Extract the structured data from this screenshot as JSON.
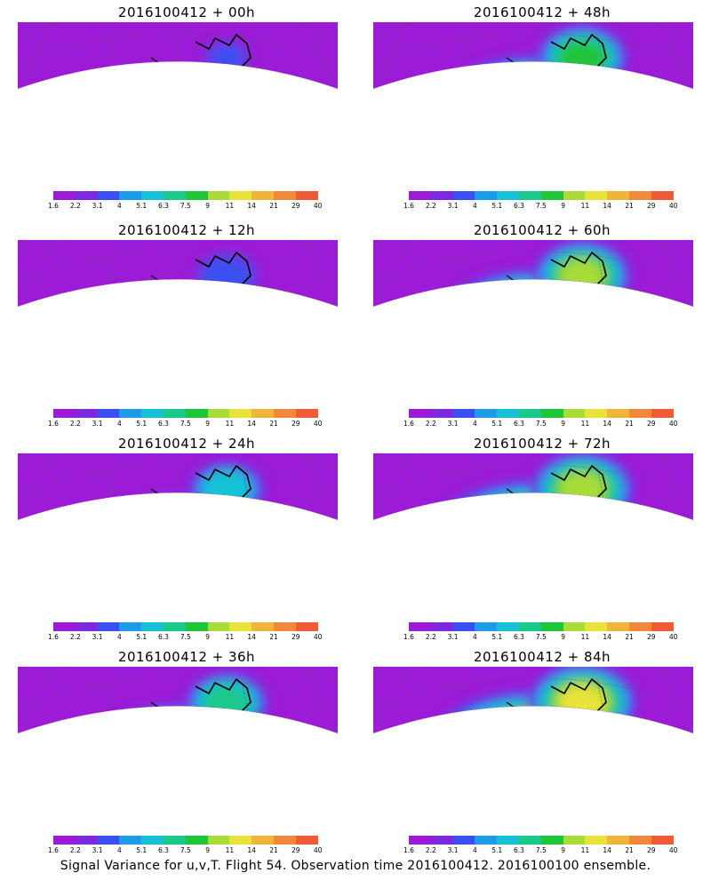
{
  "footer_text": "Signal Variance for u,v,T. Flight 54. Observation time 2016100412. 2016100100 ensemble.",
  "colorbar": {
    "colors": [
      "#9b1bd6",
      "#7b2ae0",
      "#3a4ff0",
      "#1d9ae8",
      "#16c3d6",
      "#1bc98a",
      "#22c43a",
      "#a8dc3a",
      "#e8e23a",
      "#f0b43a",
      "#f08a3a",
      "#ee5a3a",
      "#ea2a5a",
      "#f01a8c"
    ],
    "labels": [
      "1.6",
      "2.2",
      "3.1",
      "4",
      "5.1",
      "6.3",
      "7.5",
      "9",
      "11",
      "14",
      "21",
      "29",
      "40"
    ]
  },
  "panels": [
    {
      "id": "p00",
      "title": "2016100412 + 00h",
      "intensity": 0.15
    },
    {
      "id": "p48",
      "title": "2016100412 + 48h",
      "intensity": 0.7
    },
    {
      "id": "p12",
      "title": "2016100412 + 12h",
      "intensity": 0.35
    },
    {
      "id": "p60",
      "title": "2016100412 + 60h",
      "intensity": 0.78
    },
    {
      "id": "p24",
      "title": "2016100412 + 24h",
      "intensity": 0.5
    },
    {
      "id": "p72",
      "title": "2016100412 + 72h",
      "intensity": 0.85
    },
    {
      "id": "p36",
      "title": "2016100412 + 36h",
      "intensity": 0.6
    },
    {
      "id": "p84",
      "title": "2016100412 + 84h",
      "intensity": 0.92
    }
  ]
}
